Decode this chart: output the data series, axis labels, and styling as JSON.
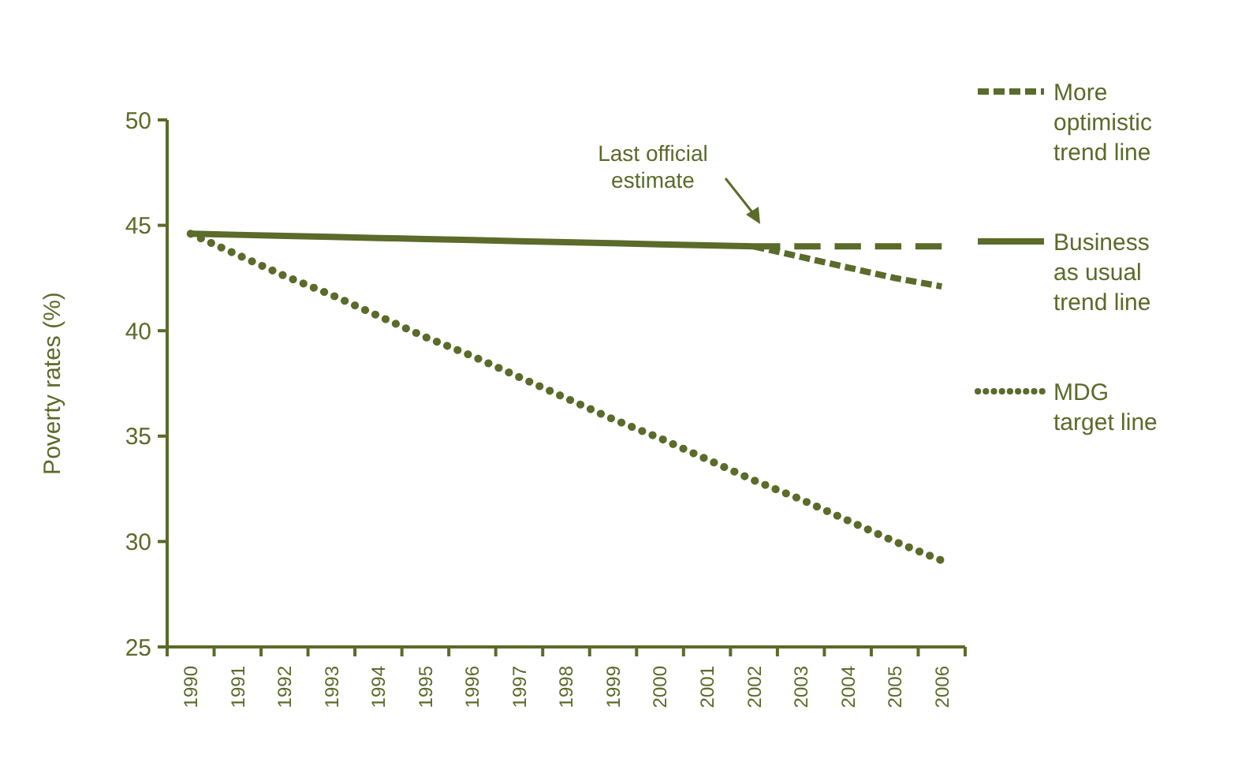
{
  "chart_data": {
    "type": "line",
    "ylabel": "Poverty rates (%)",
    "categories": [
      "1990",
      "1991",
      "1992",
      "1993",
      "1994",
      "1995",
      "1996",
      "1997",
      "1998",
      "1999",
      "2000",
      "2001",
      "2002",
      "2003",
      "2004",
      "2005",
      "2006"
    ],
    "ylim": [
      25,
      50
    ],
    "yticks": [
      25,
      30,
      35,
      40,
      45,
      50
    ],
    "legend": "right",
    "grid": false,
    "series": [
      {
        "name": "More optimistic trend line",
        "color": "#5a6b2a",
        "line_style": "dashed",
        "values": [
          null,
          null,
          null,
          null,
          null,
          null,
          null,
          null,
          null,
          null,
          null,
          null,
          44.0,
          43.5,
          43.0,
          42.5,
          42.1
        ]
      },
      {
        "name": "Business as usual trend line",
        "color": "#5a6b2a",
        "line_style": "solid",
        "values": [
          44.6,
          44.55,
          44.5,
          44.45,
          44.4,
          44.35,
          44.3,
          44.25,
          44.2,
          44.15,
          44.1,
          44.05,
          44.0,
          null,
          null,
          null,
          null
        ]
      },
      {
        "color": "#5a6b2a",
        "line_style": "dashed",
        "values": [
          null,
          null,
          null,
          null,
          null,
          null,
          null,
          null,
          null,
          null,
          null,
          null,
          44.0,
          44.0,
          44.0,
          44.0,
          44.0
        ]
      },
      {
        "name": "MDG target line",
        "color": "#5a6b2a",
        "line_style": "dotted",
        "values": [
          44.6,
          43.6,
          42.6,
          41.7,
          40.7,
          39.7,
          38.8,
          37.8,
          36.8,
          35.8,
          34.9,
          33.9,
          32.9,
          32.0,
          31.0,
          30.0,
          29.1
        ]
      }
    ],
    "annotations": [
      "Last official estimate"
    ]
  }
}
